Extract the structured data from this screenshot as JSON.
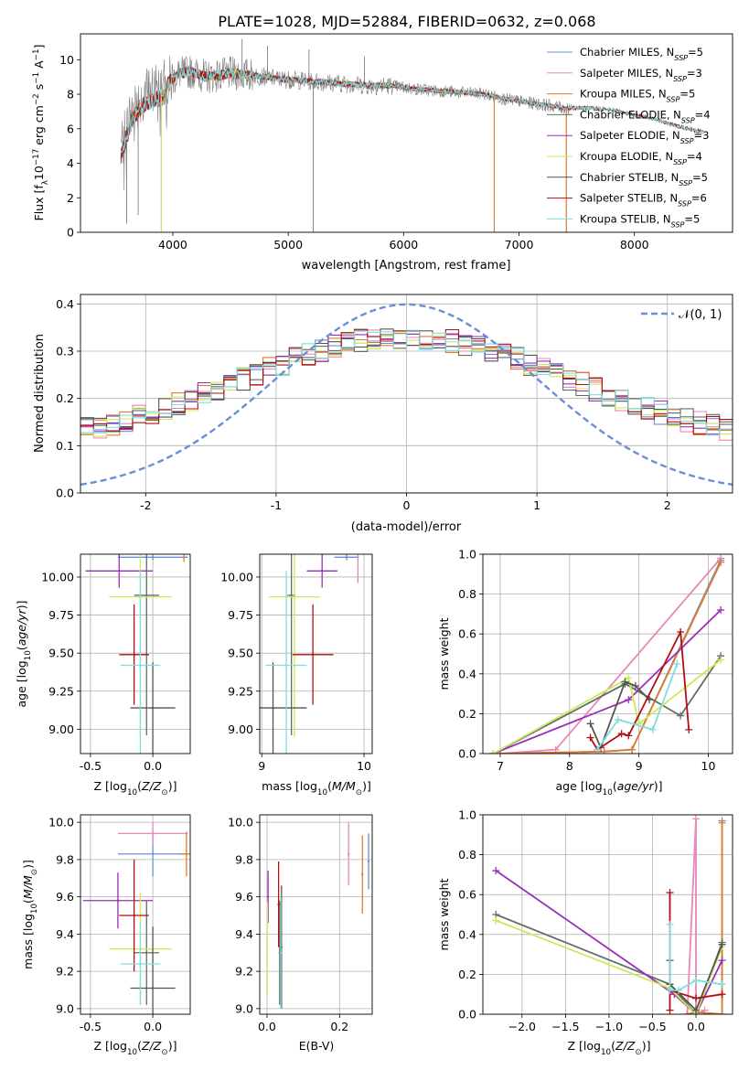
{
  "figure": {
    "title": "PLATE=1028, MJD=52884, FIBERID=0632, z=0.068"
  },
  "colors": {
    "Chabrier MILES": "#6a8fd8",
    "Salpeter MILES": "#e887b8",
    "Kroupa MILES": "#e07b2a",
    "Chabrier ELODIE": "#5f6f63",
    "Salpeter ELODIE": "#9b2fb5",
    "Kroupa ELODIE": "#cde85a",
    "Chabrier STELIB": "#555555",
    "Salpeter STELIB": "#b01010",
    "Kroupa STELIB": "#7fdde0",
    "data": "#808080",
    "normal": "#6a8fd8"
  },
  "chart_data": [
    {
      "id": "spectrum",
      "type": "line",
      "xlabel": "wavelength [Angstrom, rest frame]",
      "ylabel": "Flux [f_λ 10^-17 erg cm^-2 s^-1 A^-1]",
      "xlim": [
        3200,
        8850
      ],
      "ylim": [
        0,
        11.5
      ],
      "xticks": [
        4000,
        5000,
        6000,
        7000,
        8000
      ],
      "yticks": [
        0,
        2,
        4,
        6,
        8,
        10
      ],
      "legend_placement": "top-right",
      "legend": [
        {
          "base": "Chabrier MILES, N",
          "sub": "SSP",
          "tail": "=5"
        },
        {
          "base": "Salpeter MILES, N",
          "sub": "SSP",
          "tail": "=3"
        },
        {
          "base": "Kroupa MILES, N",
          "sub": "SSP",
          "tail": "=5"
        },
        {
          "base": "Chabrier ELODIE, N",
          "sub": "SSP",
          "tail": "=4"
        },
        {
          "base": "Salpeter ELODIE, N",
          "sub": "SSP",
          "tail": "=3"
        },
        {
          "base": "Kroupa ELODIE, N",
          "sub": "SSP",
          "tail": "=4"
        },
        {
          "base": "Chabrier STELIB, N",
          "sub": "SSP",
          "tail": "=5"
        },
        {
          "base": "Salpeter STELIB, N",
          "sub": "SSP",
          "tail": "=6"
        },
        {
          "base": "Kroupa STELIB, N",
          "sub": "SSP",
          "tail": "=5"
        }
      ],
      "continuum": {
        "x": [
          3550,
          3650,
          3750,
          3850,
          3950,
          4050,
          4150,
          4300,
          4500,
          4700,
          4900,
          5100,
          5300,
          5500,
          5700,
          5900,
          6100,
          6300,
          6500,
          6700,
          6900,
          7100,
          7300,
          7400,
          7600,
          7800,
          8000,
          8200,
          8400,
          8600
        ],
        "y": [
          5.0,
          7.2,
          8.0,
          8.3,
          8.5,
          9.2,
          9.3,
          9.0,
          9.2,
          9.1,
          8.9,
          8.8,
          8.7,
          8.6,
          8.5,
          8.5,
          8.3,
          8.2,
          8.1,
          8.0,
          7.7,
          7.5,
          7.3,
          7.2,
          7.2,
          7.1,
          6.8,
          6.5,
          6.1,
          5.8
        ]
      },
      "data_spikes": [
        {
          "x": 3900,
          "y": 0.0
        },
        {
          "x": 5217,
          "y": 0.0
        },
        {
          "x": 6785,
          "y": 0.0
        },
        {
          "x": 7410,
          "y": 0.0
        },
        {
          "x": 3600,
          "y": 0.5
        },
        {
          "x": 3700,
          "y": 1.0
        },
        {
          "x": 4600,
          "y": 11.2
        },
        {
          "x": 4820,
          "y": 10.8
        },
        {
          "x": 5660,
          "y": 10.2
        },
        {
          "x": 5180,
          "y": 10.6
        }
      ]
    },
    {
      "id": "residuals",
      "type": "area",
      "xlabel": "(data-model)/error",
      "ylabel": "Normed distribution",
      "xlim": [
        -2.5,
        2.5
      ],
      "ylim": [
        0,
        0.42
      ],
      "xticks": [
        -2,
        -1,
        0,
        1,
        2
      ],
      "yticks": [
        0.0,
        0.1,
        0.2,
        0.3,
        0.4
      ],
      "bin_width": 0.1,
      "legend_placement": "top-right",
      "normal_curve": {
        "label": "𝒩(0, 1)",
        "mean": 0,
        "sigma": 1
      }
    },
    {
      "id": "age-vs-Z",
      "type": "scatter",
      "xlabel_base": "Z [log",
      "xlabel_sub": "10",
      "xlabel_tail": "(Z/Z",
      "xlabel_sun": "⊙",
      "xlabel_end": ")]",
      "ylabel_base": "age  [log",
      "ylabel_sub": "10",
      "ylabel_tail": "(age/yr)]",
      "xlim": [
        -0.58,
        0.3
      ],
      "ylim": [
        8.84,
        10.15
      ],
      "xticks": [
        -0.5,
        0.0
      ],
      "yticks": [
        9.0,
        9.25,
        9.5,
        9.75,
        10.0
      ],
      "points": [
        {
          "m": "Chabrier MILES",
          "x": 0.0,
          "xe": 0.28,
          "y": 10.13,
          "ye": 0.02
        },
        {
          "m": "Salpeter MILES",
          "x": 0.0,
          "xe": 0.28,
          "y": 10.16,
          "ye": 0.02
        },
        {
          "m": "Kroupa MILES",
          "x": 0.25,
          "xe": 0.06,
          "y": 10.16,
          "ye": 0.06
        },
        {
          "m": "Chabrier ELODIE",
          "x": -0.05,
          "xe": 0.1,
          "y": 9.88,
          "ye": 0.92
        },
        {
          "m": "Salpeter ELODIE",
          "x": -0.27,
          "xe": 0.27,
          "y": 10.04,
          "ye": 0.11
        },
        {
          "m": "Kroupa ELODIE",
          "x": -0.1,
          "xe": 0.25,
          "y": 9.87,
          "ye": 0.92
        },
        {
          "m": "Chabrier STELIB",
          "x": 0.0,
          "xe": 0.18,
          "y": 9.14,
          "ye": 0.3
        },
        {
          "m": "Salpeter STELIB",
          "x": -0.15,
          "xe": 0.12,
          "y": 9.49,
          "ye": 0.33
        },
        {
          "m": "Kroupa STELIB",
          "x": -0.1,
          "xe": 0.16,
          "y": 9.42,
          "ye": 0.62
        }
      ]
    },
    {
      "id": "age-vs-mass",
      "type": "scatter",
      "xlabel_base": "mass [log",
      "xlabel_sub": "10",
      "xlabel_tail": "(M/M",
      "xlabel_sun": "⊙",
      "xlabel_end": ")]",
      "xlim": [
        8.98,
        10.08
      ],
      "ylim": [
        8.84,
        10.15
      ],
      "xticks": [
        9,
        10
      ],
      "yticks": [
        9.0,
        9.25,
        9.5,
        9.75,
        10.0
      ],
      "points": [
        {
          "m": "Chabrier MILES",
          "x": 9.83,
          "xe": 0.12,
          "y": 10.13,
          "ye": 0.02
        },
        {
          "m": "Salpeter MILES",
          "x": 9.94,
          "xe": 0.04,
          "y": 10.16,
          "ye": 0.2
        },
        {
          "m": "Kroupa MILES",
          "x": 9.83,
          "xe": 0.12,
          "y": 10.16,
          "ye": 0.02
        },
        {
          "m": "Chabrier ELODIE",
          "x": 9.29,
          "xe": 0.04,
          "y": 9.88,
          "ye": 0.92
        },
        {
          "m": "Salpeter ELODIE",
          "x": 9.59,
          "xe": 0.15,
          "y": 10.04,
          "ye": 0.11
        },
        {
          "m": "Kroupa ELODIE",
          "x": 9.32,
          "xe": 0.25,
          "y": 9.87,
          "ye": 0.92
        },
        {
          "m": "Chabrier STELIB",
          "x": 9.11,
          "xe": 0.33,
          "y": 9.14,
          "ye": 0.3
        },
        {
          "m": "Salpeter STELIB",
          "x": 9.5,
          "xe": 0.2,
          "y": 9.49,
          "ye": 0.33
        },
        {
          "m": "Kroupa STELIB",
          "x": 9.24,
          "xe": 0.2,
          "y": 9.42,
          "ye": 0.62
        }
      ]
    },
    {
      "id": "weight-vs-age",
      "type": "line",
      "xlabel_base": "age  [log",
      "xlabel_sub": "10",
      "xlabel_tail": "(age/yr)]",
      "ylabel": "mass weight",
      "xlim": [
        6.75,
        10.35
      ],
      "ylim": [
        0,
        1.0
      ],
      "xticks": [
        7,
        8,
        9,
        10
      ],
      "yticks": [
        0.0,
        0.2,
        0.4,
        0.6,
        0.8,
        1.0
      ],
      "series": [
        {
          "m": "Chabrier MILES",
          "x": [
            7.0,
            8.5,
            8.9,
            10.18
          ],
          "y": [
            0.0,
            0.01,
            0.02,
            0.97
          ]
        },
        {
          "m": "Salpeter MILES",
          "x": [
            7.0,
            7.8,
            10.18
          ],
          "y": [
            0.0,
            0.02,
            0.98
          ]
        },
        {
          "m": "Kroupa MILES",
          "x": [
            7.0,
            8.5,
            8.9,
            10.18
          ],
          "y": [
            0.0,
            0.01,
            0.02,
            0.96
          ]
        },
        {
          "m": "Chabrier ELODIE",
          "x": [
            6.9,
            8.8,
            9.6,
            10.18
          ],
          "y": [
            0.0,
            0.35,
            0.19,
            0.49
          ]
        },
        {
          "m": "Salpeter ELODIE",
          "x": [
            6.9,
            8.85,
            10.18
          ],
          "y": [
            0.0,
            0.27,
            0.72
          ]
        },
        {
          "m": "Kroupa ELODIE",
          "x": [
            6.9,
            8.85,
            9.0,
            10.18
          ],
          "y": [
            0.0,
            0.38,
            0.15,
            0.47
          ]
        },
        {
          "m": "Chabrier STELIB",
          "x": [
            8.3,
            8.45,
            8.8,
            8.95,
            9.15
          ],
          "y": [
            0.15,
            0.03,
            0.36,
            0.34,
            0.27
          ]
        },
        {
          "m": "Salpeter STELIB",
          "x": [
            8.3,
            8.4,
            8.75,
            8.85,
            9.6,
            9.72
          ],
          "y": [
            0.08,
            0.02,
            0.1,
            0.09,
            0.61,
            0.12
          ]
        },
        {
          "m": "Kroupa STELIB",
          "x": [
            8.4,
            8.7,
            9.2,
            9.55
          ],
          "y": [
            0.02,
            0.17,
            0.12,
            0.45
          ]
        }
      ]
    },
    {
      "id": "mass-vs-Z",
      "type": "scatter",
      "xlabel_base": "Z [log",
      "xlabel_sub": "10",
      "xlabel_tail": "(Z/Z",
      "xlabel_sun": "⊙",
      "xlabel_end": ")]",
      "ylabel_base": "mass [log",
      "ylabel_sub": "10",
      "ylabel_tail": "(M/M",
      "ylabel_sun": "⊙",
      "ylabel_end": ")]",
      "xlim": [
        -0.58,
        0.3
      ],
      "ylim": [
        8.97,
        10.04
      ],
      "xticks": [
        -0.5,
        0.0
      ],
      "yticks": [
        9.0,
        9.2,
        9.4,
        9.6,
        9.8,
        10.0
      ],
      "points": [
        {
          "m": "Chabrier MILES",
          "x": 0.0,
          "xe": 0.28,
          "y": 9.83,
          "ye": 0.12
        },
        {
          "m": "Salpeter MILES",
          "x": 0.0,
          "xe": 0.28,
          "y": 9.94,
          "ye": 0.06
        },
        {
          "m": "Kroupa MILES",
          "x": 0.27,
          "xe": 0.05,
          "y": 9.83,
          "ye": 0.12
        },
        {
          "m": "Chabrier ELODIE",
          "x": -0.05,
          "xe": 0.1,
          "y": 9.3,
          "ye": 0.28
        },
        {
          "m": "Salpeter ELODIE",
          "x": -0.28,
          "xe": 0.28,
          "y": 9.58,
          "ye": 0.15
        },
        {
          "m": "Kroupa ELODIE",
          "x": -0.1,
          "xe": 0.25,
          "y": 9.32,
          "ye": 0.3
        },
        {
          "m": "Chabrier STELIB",
          "x": 0.0,
          "xe": 0.18,
          "y": 9.11,
          "ye": 0.33
        },
        {
          "m": "Salpeter STELIB",
          "x": -0.15,
          "xe": 0.12,
          "y": 9.5,
          "ye": 0.3
        },
        {
          "m": "Kroupa STELIB",
          "x": -0.1,
          "xe": 0.16,
          "y": 9.24,
          "ye": 0.22
        }
      ]
    },
    {
      "id": "mass-vs-EBV",
      "type": "scatter",
      "xlabel": "E(B-V)",
      "xlim": [
        -0.02,
        0.29
      ],
      "ylim": [
        8.97,
        10.04
      ],
      "xticks": [
        0.0,
        0.2
      ],
      "yticks": [
        9.0,
        9.2,
        9.4,
        9.6,
        9.8,
        10.0
      ],
      "points": [
        {
          "m": "Chabrier MILES",
          "x": 0.28,
          "xe": 0.0,
          "y": 9.79,
          "ye": 0.15
        },
        {
          "m": "Salpeter MILES",
          "x": 0.225,
          "xe": 0.0,
          "y": 9.83,
          "ye": 0.17
        },
        {
          "m": "Kroupa MILES",
          "x": 0.263,
          "xe": 0.0,
          "y": 9.72,
          "ye": 0.21
        },
        {
          "m": "Chabrier ELODIE",
          "x": 0.035,
          "xe": 0.0,
          "y": 9.3,
          "ye": 0.28
        },
        {
          "m": "Salpeter ELODIE",
          "x": 0.003,
          "xe": 0.0,
          "y": 9.6,
          "ye": 0.14
        },
        {
          "m": "Kroupa ELODIE",
          "x": 0.001,
          "xe": 0.0,
          "y": 9.32,
          "ye": 0.25
        },
        {
          "m": "Chabrier STELIB",
          "x": 0.04,
          "xe": 0.0,
          "y": 9.33,
          "ye": 0.33
        },
        {
          "m": "Salpeter STELIB",
          "x": 0.032,
          "xe": 0.0,
          "y": 9.56,
          "ye": 0.23
        },
        {
          "m": "Kroupa STELIB",
          "x": 0.038,
          "xe": 0.0,
          "y": 9.3,
          "ye": 0.3
        }
      ]
    },
    {
      "id": "weight-vs-Z",
      "type": "line",
      "xlabel_base": "Z [log",
      "xlabel_sub": "10",
      "xlabel_tail": "(Z/Z",
      "xlabel_sun": "⊙",
      "xlabel_end": ")]",
      "ylabel": "mass weight",
      "xlim": [
        -2.45,
        0.42
      ],
      "ylim": [
        0,
        1.0
      ],
      "xticks": [
        -2.0,
        -1.5,
        -1.0,
        -0.5,
        0.0
      ],
      "xtick_labels": [
        "−2.0",
        "−1.5",
        "−1.0",
        "−0.5",
        "0.0"
      ],
      "yticks": [
        0.0,
        0.2,
        0.4,
        0.6,
        0.8,
        1.0
      ],
      "series": [
        {
          "m": "Chabrier MILES",
          "x": [
            -0.1,
            0.0,
            0.3,
            0.3
          ],
          "y": [
            0.0,
            0.01,
            0.0,
            0.97
          ]
        },
        {
          "m": "Salpeter MILES",
          "x": [
            -0.1,
            0.0,
            0.0,
            0.1
          ],
          "y": [
            0.0,
            0.98,
            0.0,
            0.02
          ]
        },
        {
          "m": "Kroupa MILES",
          "x": [
            -0.1,
            0.0,
            0.3,
            0.3
          ],
          "y": [
            0.0,
            0.01,
            0.0,
            0.96
          ]
        },
        {
          "m": "Chabrier ELODIE",
          "x": [
            -2.3,
            -0.3,
            0.0,
            0.3
          ],
          "y": [
            0.5,
            0.15,
            0.0,
            0.36
          ]
        },
        {
          "m": "Salpeter ELODIE",
          "x": [
            -2.3,
            -0.25,
            0.0,
            0.3
          ],
          "y": [
            0.72,
            0.1,
            0.0,
            0.27
          ]
        },
        {
          "m": "Kroupa ELODIE",
          "x": [
            -2.3,
            -0.3,
            0.0,
            0.3
          ],
          "y": [
            0.47,
            0.13,
            0.0,
            0.34
          ]
        },
        {
          "m": "Chabrier STELIB",
          "x": [
            -0.3,
            -0.3,
            0.0,
            0.3
          ],
          "y": [
            0.27,
            0.15,
            0.02,
            0.35
          ]
        },
        {
          "m": "Salpeter STELIB",
          "x": [
            -0.3,
            -0.3,
            -0.3,
            0.0,
            0.3
          ],
          "y": [
            0.61,
            0.02,
            0.12,
            0.08,
            0.1
          ]
        },
        {
          "m": "Kroupa STELIB",
          "x": [
            -0.3,
            -0.3,
            -0.2,
            0.0,
            0.3
          ],
          "y": [
            0.45,
            0.12,
            0.12,
            0.17,
            0.15
          ]
        }
      ]
    }
  ]
}
